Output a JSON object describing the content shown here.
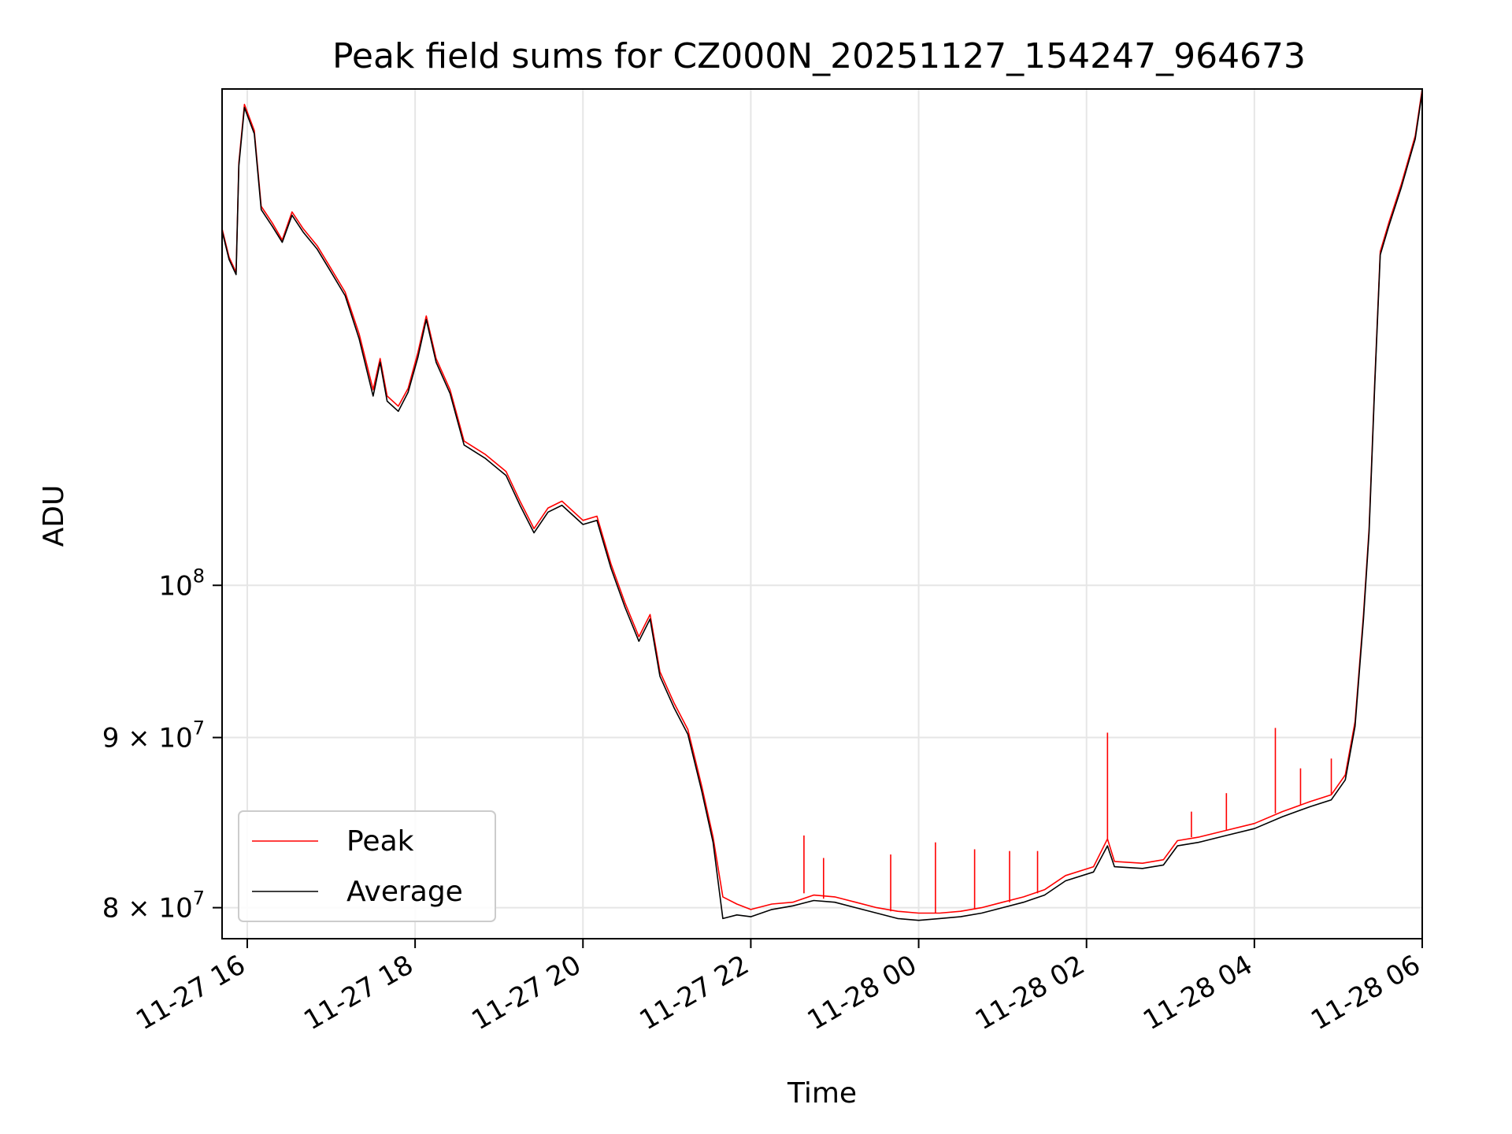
{
  "chart_data": {
    "type": "line",
    "title": "Peak field sums for CZ000N_20251127_154247_964673",
    "xlabel": "Time",
    "ylabel": "ADU",
    "y_scale": "log",
    "grid": true,
    "legend_position": "lower-left",
    "xlim": [
      "2025-11-27 15:42",
      "2025-11-28 06:00"
    ],
    "ylim": [
      78300000,
      141000000
    ],
    "x_ticks": [
      {
        "t": "2025-11-27 16:00",
        "label": "11-27 16"
      },
      {
        "t": "2025-11-27 18:00",
        "label": "11-27 18"
      },
      {
        "t": "2025-11-27 20:00",
        "label": "11-27 20"
      },
      {
        "t": "2025-11-27 22:00",
        "label": "11-27 22"
      },
      {
        "t": "2025-11-28 00:00",
        "label": "11-28 00"
      },
      {
        "t": "2025-11-28 02:00",
        "label": "11-28 02"
      },
      {
        "t": "2025-11-28 04:00",
        "label": "11-28 04"
      },
      {
        "t": "2025-11-28 06:00",
        "label": "11-28 06"
      }
    ],
    "y_ticks": [
      {
        "value": 80000000,
        "label_base": "8 × 10",
        "label_exp": "7"
      },
      {
        "value": 90000000,
        "label_base": "9 × 10",
        "label_exp": "7"
      },
      {
        "value": 100000000,
        "label_base": "10",
        "label_exp": "8"
      }
    ],
    "series": [
      {
        "name": "Peak",
        "color": "#ff0000",
        "points": [
          [
            "2025-11-27 15:42",
            128000000
          ],
          [
            "2025-11-27 15:47",
            125500000
          ],
          [
            "2025-11-27 15:52",
            124200000
          ],
          [
            "2025-11-27 15:54",
            134000000
          ],
          [
            "2025-11-27 15:58",
            139500000
          ],
          [
            "2025-11-27 16:05",
            137000000
          ],
          [
            "2025-11-27 16:10",
            130000000
          ],
          [
            "2025-11-27 16:18",
            128500000
          ],
          [
            "2025-11-27 16:25",
            127000000
          ],
          [
            "2025-11-27 16:32",
            129500000
          ],
          [
            "2025-11-27 16:40",
            128000000
          ],
          [
            "2025-11-27 16:50",
            126500000
          ],
          [
            "2025-11-27 17:00",
            124500000
          ],
          [
            "2025-11-27 17:10",
            122500000
          ],
          [
            "2025-11-27 17:20",
            119000000
          ],
          [
            "2025-11-27 17:30",
            114500000
          ],
          [
            "2025-11-27 17:35",
            117000000
          ],
          [
            "2025-11-27 17:40",
            114000000
          ],
          [
            "2025-11-27 17:48",
            113200000
          ],
          [
            "2025-11-27 17:55",
            114600000
          ],
          [
            "2025-11-27 18:02",
            117500000
          ],
          [
            "2025-11-27 18:08",
            120500000
          ],
          [
            "2025-11-27 18:15",
            117000000
          ],
          [
            "2025-11-27 18:25",
            114500000
          ],
          [
            "2025-11-27 18:35",
            110500000
          ],
          [
            "2025-11-27 18:50",
            109500000
          ],
          [
            "2025-11-27 19:05",
            108200000
          ],
          [
            "2025-11-27 19:15",
            106000000
          ],
          [
            "2025-11-27 19:25",
            104000000
          ],
          [
            "2025-11-27 19:35",
            105500000
          ],
          [
            "2025-11-27 19:45",
            106000000
          ],
          [
            "2025-11-27 20:00",
            104600000
          ],
          [
            "2025-11-27 20:10",
            104900000
          ],
          [
            "2025-11-27 20:20",
            101500000
          ],
          [
            "2025-11-27 20:30",
            98800000
          ],
          [
            "2025-11-27 20:40",
            96500000
          ],
          [
            "2025-11-27 20:48",
            98000000
          ],
          [
            "2025-11-27 20:55",
            94200000
          ],
          [
            "2025-11-27 21:05",
            92200000
          ],
          [
            "2025-11-27 21:15",
            90500000
          ],
          [
            "2025-11-27 21:25",
            87000000
          ],
          [
            "2025-11-27 21:33",
            84000000
          ],
          [
            "2025-11-27 21:40",
            80600000
          ],
          [
            "2025-11-27 21:50",
            80200000
          ],
          [
            "2025-11-27 22:00",
            79900000
          ],
          [
            "2025-11-27 22:15",
            80200000
          ],
          [
            "2025-11-27 22:30",
            80300000
          ],
          [
            "2025-11-27 22:45",
            80700000
          ],
          [
            "2025-11-27 23:00",
            80600000
          ],
          [
            "2025-11-27 23:15",
            80300000
          ],
          [
            "2025-11-27 23:30",
            80000000
          ],
          [
            "2025-11-27 23:45",
            79800000
          ],
          [
            "2025-11-28 00:00",
            79700000
          ],
          [
            "2025-11-28 00:15",
            79700000
          ],
          [
            "2025-11-28 00:30",
            79800000
          ],
          [
            "2025-11-28 00:45",
            80000000
          ],
          [
            "2025-11-28 01:00",
            80300000
          ],
          [
            "2025-11-28 01:15",
            80600000
          ],
          [
            "2025-11-28 01:30",
            81000000
          ],
          [
            "2025-11-28 01:45",
            81800000
          ],
          [
            "2025-11-28 02:05",
            82300000
          ],
          [
            "2025-11-28 02:15",
            83900000
          ],
          [
            "2025-11-28 02:20",
            82600000
          ],
          [
            "2025-11-28 02:40",
            82500000
          ],
          [
            "2025-11-28 02:55",
            82700000
          ],
          [
            "2025-11-28 03:05",
            83800000
          ],
          [
            "2025-11-28 03:20",
            84000000
          ],
          [
            "2025-11-28 03:40",
            84400000
          ],
          [
            "2025-11-28 04:00",
            84800000
          ],
          [
            "2025-11-28 04:20",
            85500000
          ],
          [
            "2025-11-28 04:40",
            86100000
          ],
          [
            "2025-11-28 04:55",
            86500000
          ],
          [
            "2025-11-28 05:05",
            87700000
          ],
          [
            "2025-11-28 05:12",
            91000000
          ],
          [
            "2025-11-28 05:18",
            98000000
          ],
          [
            "2025-11-28 05:22",
            104000000
          ],
          [
            "2025-11-28 05:26",
            115000000
          ],
          [
            "2025-11-28 05:30",
            126000000
          ],
          [
            "2025-11-28 05:36",
            128500000
          ],
          [
            "2025-11-28 05:45",
            132000000
          ],
          [
            "2025-11-28 05:55",
            136500000
          ],
          [
            "2025-11-28 06:00",
            141000000
          ]
        ]
      },
      {
        "name": "Average",
        "color": "#000000",
        "points": [
          [
            "2025-11-27 15:42",
            127800000
          ],
          [
            "2025-11-27 15:47",
            125300000
          ],
          [
            "2025-11-27 15:52",
            124000000
          ],
          [
            "2025-11-27 15:54",
            133700000
          ],
          [
            "2025-11-27 15:58",
            139200000
          ],
          [
            "2025-11-27 16:05",
            136700000
          ],
          [
            "2025-11-27 16:10",
            129700000
          ],
          [
            "2025-11-27 16:18",
            128200000
          ],
          [
            "2025-11-27 16:25",
            126800000
          ],
          [
            "2025-11-27 16:32",
            129200000
          ],
          [
            "2025-11-27 16:40",
            127700000
          ],
          [
            "2025-11-27 16:50",
            126200000
          ],
          [
            "2025-11-27 17:00",
            124200000
          ],
          [
            "2025-11-27 17:10",
            122200000
          ],
          [
            "2025-11-27 17:20",
            118600000
          ],
          [
            "2025-11-27 17:30",
            114000000
          ],
          [
            "2025-11-27 17:35",
            116700000
          ],
          [
            "2025-11-27 17:40",
            113600000
          ],
          [
            "2025-11-27 17:48",
            112800000
          ],
          [
            "2025-11-27 17:55",
            114300000
          ],
          [
            "2025-11-27 18:02",
            117100000
          ],
          [
            "2025-11-27 18:08",
            120200000
          ],
          [
            "2025-11-27 18:15",
            116700000
          ],
          [
            "2025-11-27 18:25",
            114200000
          ],
          [
            "2025-11-27 18:35",
            110200000
          ],
          [
            "2025-11-27 18:50",
            109200000
          ],
          [
            "2025-11-27 19:05",
            107900000
          ],
          [
            "2025-11-27 19:15",
            105700000
          ],
          [
            "2025-11-27 19:25",
            103700000
          ],
          [
            "2025-11-27 19:35",
            105200000
          ],
          [
            "2025-11-27 19:45",
            105700000
          ],
          [
            "2025-11-27 20:00",
            104300000
          ],
          [
            "2025-11-27 20:10",
            104600000
          ],
          [
            "2025-11-27 20:20",
            101200000
          ],
          [
            "2025-11-27 20:30",
            98500000
          ],
          [
            "2025-11-27 20:40",
            96200000
          ],
          [
            "2025-11-27 20:48",
            97700000
          ],
          [
            "2025-11-27 20:55",
            93900000
          ],
          [
            "2025-11-27 21:05",
            91900000
          ],
          [
            "2025-11-27 21:15",
            90200000
          ],
          [
            "2025-11-27 21:25",
            86700000
          ],
          [
            "2025-11-27 21:33",
            83700000
          ],
          [
            "2025-11-27 21:40",
            79400000
          ],
          [
            "2025-11-27 21:50",
            79600000
          ],
          [
            "2025-11-27 22:00",
            79500000
          ],
          [
            "2025-11-27 22:15",
            79900000
          ],
          [
            "2025-11-27 22:30",
            80100000
          ],
          [
            "2025-11-27 22:45",
            80400000
          ],
          [
            "2025-11-27 23:00",
            80300000
          ],
          [
            "2025-11-27 23:15",
            80000000
          ],
          [
            "2025-11-27 23:30",
            79700000
          ],
          [
            "2025-11-27 23:45",
            79400000
          ],
          [
            "2025-11-28 00:00",
            79300000
          ],
          [
            "2025-11-28 00:15",
            79400000
          ],
          [
            "2025-11-28 00:30",
            79500000
          ],
          [
            "2025-11-28 00:45",
            79700000
          ],
          [
            "2025-11-28 01:00",
            80000000
          ],
          [
            "2025-11-28 01:15",
            80300000
          ],
          [
            "2025-11-28 01:30",
            80700000
          ],
          [
            "2025-11-28 01:45",
            81500000
          ],
          [
            "2025-11-28 02:05",
            82000000
          ],
          [
            "2025-11-28 02:15",
            83500000
          ],
          [
            "2025-11-28 02:20",
            82300000
          ],
          [
            "2025-11-28 02:40",
            82200000
          ],
          [
            "2025-11-28 02:55",
            82400000
          ],
          [
            "2025-11-28 03:05",
            83500000
          ],
          [
            "2025-11-28 03:20",
            83700000
          ],
          [
            "2025-11-28 03:40",
            84100000
          ],
          [
            "2025-11-28 04:00",
            84500000
          ],
          [
            "2025-11-28 04:20",
            85200000
          ],
          [
            "2025-11-28 04:40",
            85800000
          ],
          [
            "2025-11-28 04:55",
            86200000
          ],
          [
            "2025-11-28 05:05",
            87400000
          ],
          [
            "2025-11-28 05:12",
            90700000
          ],
          [
            "2025-11-28 05:18",
            97700000
          ],
          [
            "2025-11-28 05:22",
            103700000
          ],
          [
            "2025-11-28 05:26",
            114700000
          ],
          [
            "2025-11-28 05:30",
            125700000
          ],
          [
            "2025-11-28 05:36",
            128200000
          ],
          [
            "2025-11-28 05:45",
            131700000
          ],
          [
            "2025-11-28 05:55",
            136200000
          ],
          [
            "2025-11-28 06:00",
            140700000
          ]
        ]
      }
    ],
    "spikes": [
      [
        "2025-11-27 22:38",
        80800000,
        84100000
      ],
      [
        "2025-11-27 22:52",
        80500000,
        82800000
      ],
      [
        "2025-11-27 23:40",
        79800000,
        83000000
      ],
      [
        "2025-11-28 00:12",
        79700000,
        83700000
      ],
      [
        "2025-11-28 00:40",
        79900000,
        83300000
      ],
      [
        "2025-11-28 01:05",
        80300000,
        83200000
      ],
      [
        "2025-11-28 01:25",
        80800000,
        83200000
      ],
      [
        "2025-11-28 02:15",
        83900000,
        90300000
      ],
      [
        "2025-11-28 03:15",
        84000000,
        85500000
      ],
      [
        "2025-11-28 03:40",
        84400000,
        86600000
      ],
      [
        "2025-11-28 04:15",
        85400000,
        90600000
      ],
      [
        "2025-11-28 04:33",
        85900000,
        88100000
      ],
      [
        "2025-11-28 04:55",
        86500000,
        88700000
      ]
    ],
    "legend_entries": [
      {
        "name": "Peak",
        "color": "#ff0000"
      },
      {
        "name": "Average",
        "color": "#000000"
      }
    ]
  }
}
